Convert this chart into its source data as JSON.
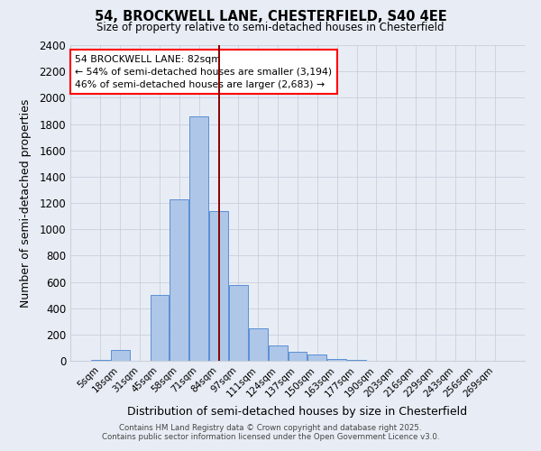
{
  "title_line1": "54, BROCKWELL LANE, CHESTERFIELD, S40 4EE",
  "title_line2": "Size of property relative to semi-detached houses in Chesterfield",
  "xlabel": "Distribution of semi-detached houses by size in Chesterfield",
  "ylabel": "Number of semi-detached properties",
  "categories": [
    "5sqm",
    "18sqm",
    "31sqm",
    "45sqm",
    "58sqm",
    "71sqm",
    "84sqm",
    "97sqm",
    "111sqm",
    "124sqm",
    "137sqm",
    "150sqm",
    "163sqm",
    "177sqm",
    "190sqm",
    "203sqm",
    "216sqm",
    "229sqm",
    "243sqm",
    "256sqm",
    "269sqm"
  ],
  "bar_heights": [
    10,
    80,
    0,
    500,
    1230,
    1860,
    1140,
    575,
    245,
    115,
    70,
    45,
    15,
    10,
    0,
    0,
    0,
    0,
    0,
    0,
    0
  ],
  "bar_color": "#aec6e8",
  "bar_edge_color": "#5b8fd4",
  "property_line_x": 6.0,
  "annotation_title": "54 BROCKWELL LANE: 82sqm",
  "annotation_line1": "← 54% of semi-detached houses are smaller (3,194)",
  "annotation_line2": "46% of semi-detached houses are larger (2,683) →",
  "ylim": [
    0,
    2400
  ],
  "yticks": [
    0,
    200,
    400,
    600,
    800,
    1000,
    1200,
    1400,
    1600,
    1800,
    2000,
    2200,
    2400
  ],
  "grid_color": "#c8d0dc",
  "bg_color": "#e8edf5",
  "footer_line1": "Contains HM Land Registry data © Crown copyright and database right 2025.",
  "footer_line2": "Contains public sector information licensed under the Open Government Licence v3.0."
}
